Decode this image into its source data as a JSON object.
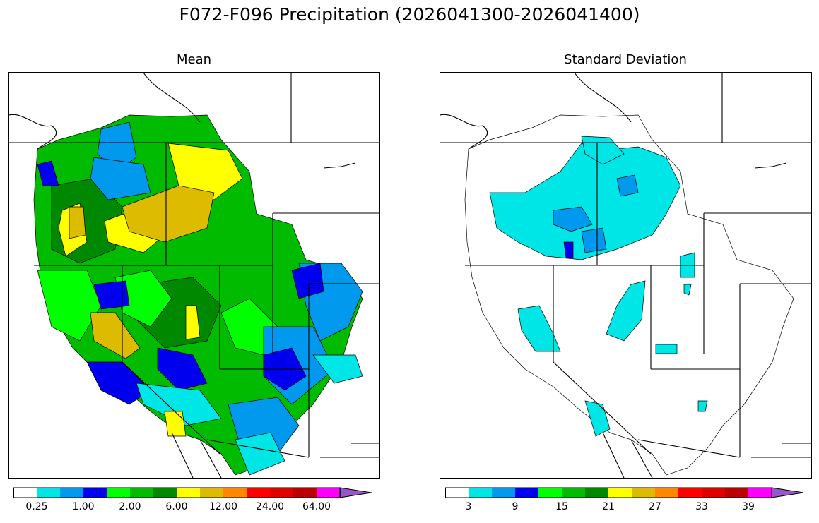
{
  "title": "F072-F096 Precipitation (2026041300-2026041400)",
  "panels": [
    {
      "title": "Mean",
      "colorbar": {
        "colors": [
          "#ffffff",
          "#00e5e5",
          "#0099ee",
          "#0000ee",
          "#00ff00",
          "#00bb00",
          "#008800",
          "#ffff00",
          "#ddbb00",
          "#ff8800",
          "#ff0000",
          "#dd0000",
          "#bb0000",
          "#ff00ff",
          "#9955cc"
        ],
        "labels": [
          "0.25",
          "1.00",
          "2.00",
          "6.00",
          "12.00",
          "24.00",
          "64.00"
        ]
      }
    },
    {
      "title": "Standard Deviation",
      "colorbar": {
        "colors": [
          "#ffffff",
          "#00e5e5",
          "#0099ee",
          "#0000ee",
          "#00ff00",
          "#00bb00",
          "#008800",
          "#ffff00",
          "#ddbb00",
          "#ff8800",
          "#ff0000",
          "#dd0000",
          "#bb0000",
          "#ff00ff",
          "#9955cc"
        ],
        "labels": [
          "3",
          "9",
          "15",
          "21",
          "27",
          "33",
          "39"
        ]
      }
    }
  ]
}
